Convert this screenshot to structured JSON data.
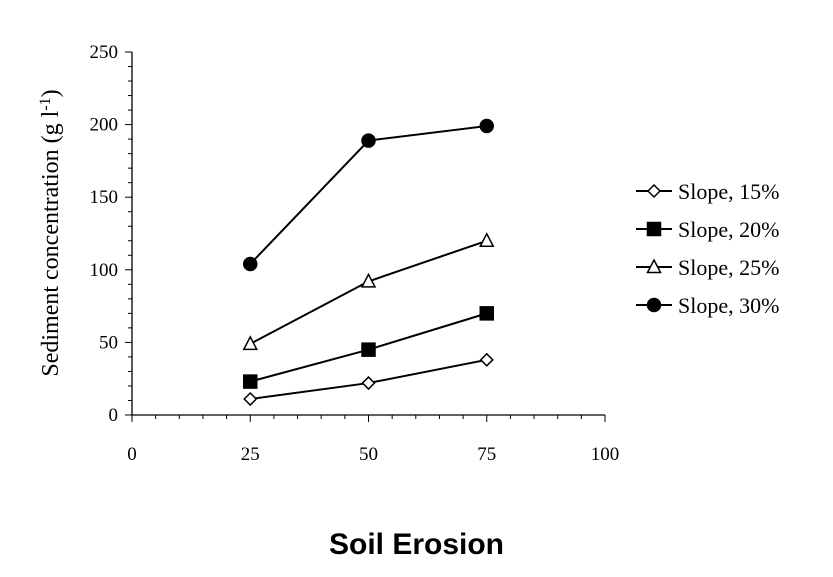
{
  "caption": "Soil Erosion",
  "chart_data": {
    "type": "line",
    "ylabel": "Sediment concentration (g l",
    "ylabel_superscript": "-1",
    "ylabel_close": ")",
    "xlim": [
      0,
      100
    ],
    "ylim": [
      0,
      250
    ],
    "x_ticks": [
      0,
      25,
      50,
      75,
      100
    ],
    "y_ticks": [
      0,
      50,
      100,
      150,
      200,
      250
    ],
    "grid": false,
    "legend_position": "right",
    "series": [
      {
        "name": "Slope, 15%",
        "marker": "diamond-open",
        "x": [
          25,
          50,
          75
        ],
        "values": [
          11,
          22,
          38
        ]
      },
      {
        "name": "Slope, 20%",
        "marker": "square-filled",
        "x": [
          25,
          50,
          75
        ],
        "values": [
          23,
          45,
          70
        ]
      },
      {
        "name": "Slope, 25%",
        "marker": "triangle-open",
        "x": [
          25,
          50,
          75
        ],
        "values": [
          49,
          92,
          120
        ]
      },
      {
        "name": "Slope, 30%",
        "marker": "circle-filled",
        "x": [
          25,
          50,
          75
        ],
        "values": [
          104,
          189,
          199
        ]
      }
    ],
    "colors": {
      "line": "#000000",
      "fill_open": "#ffffff",
      "fill_solid": "#000000"
    }
  }
}
